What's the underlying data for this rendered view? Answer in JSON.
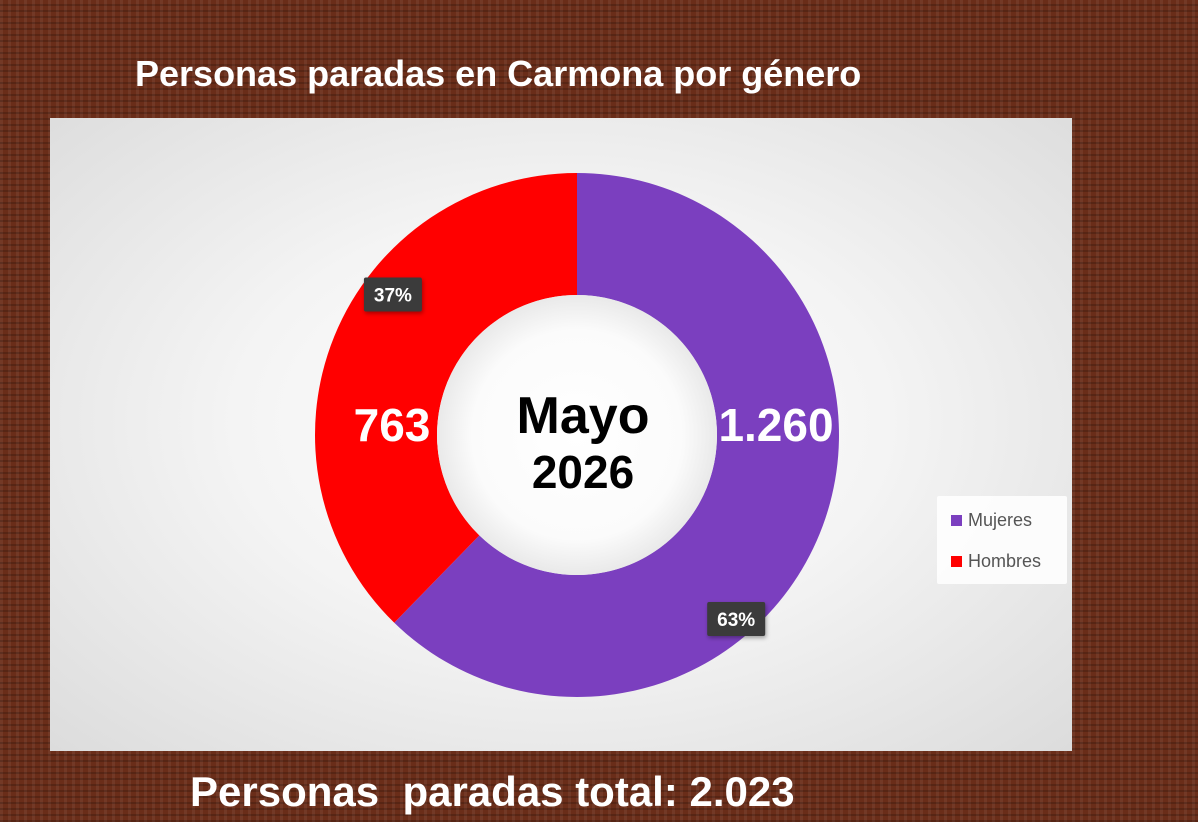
{
  "chart_data": {
    "type": "pie",
    "title": "Personas paradas en Carmona por género",
    "center_label": [
      "Mayo",
      "2026"
    ],
    "footer": "Personas  paradas total: 2.023",
    "slices": [
      {
        "name": "Mujeres",
        "value": 1260,
        "value_label": "1.260",
        "percent_label": "63%",
        "color": "#7b3fbf"
      },
      {
        "name": "Hombres",
        "value": 763,
        "value_label": "763",
        "percent_label": "37%",
        "color": "#ff0000"
      }
    ],
    "legend": {
      "placement": "right"
    },
    "hole": "donut"
  }
}
